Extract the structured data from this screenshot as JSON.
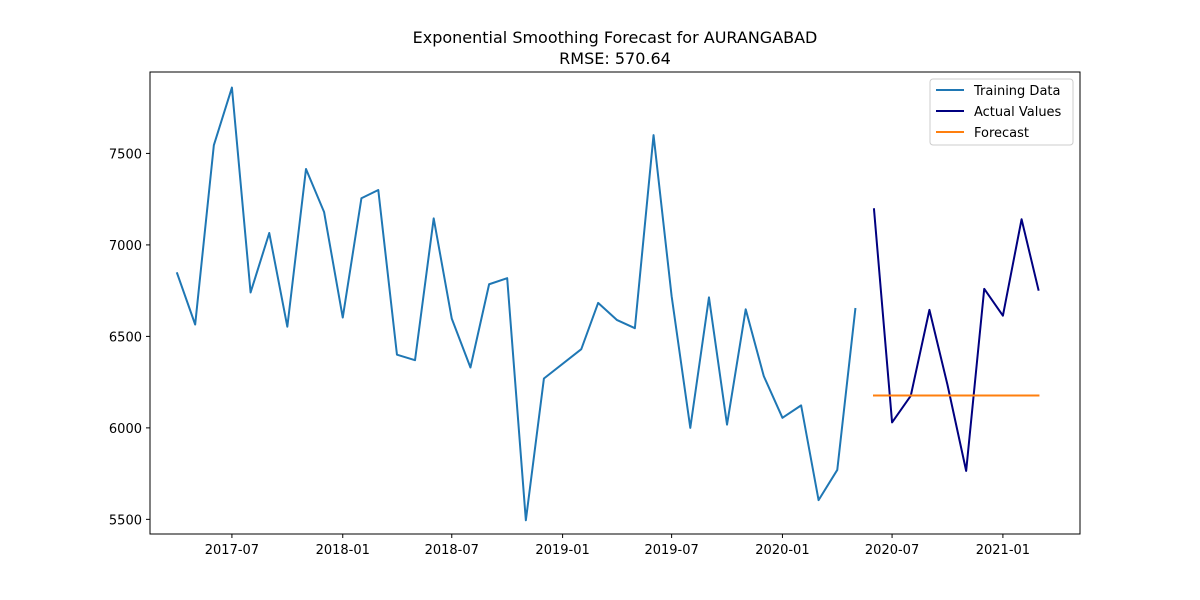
{
  "chart_data": {
    "type": "line",
    "title": "Exponential Smoothing Forecast for AURANGABAD",
    "subtitle": "RMSE: 570.64",
    "xlabel": "",
    "ylabel": "",
    "x_range": [
      "2017-02-15",
      "2021-05-09"
    ],
    "ylim": [
      5420,
      7945
    ],
    "y_ticks": [
      5500,
      6000,
      6500,
      7000,
      7500
    ],
    "x_ticks": [
      "2017-07",
      "2018-01",
      "2018-07",
      "2019-01",
      "2019-07",
      "2020-01",
      "2020-07",
      "2021-01"
    ],
    "grid": false,
    "legend_position": "top-right",
    "series": [
      {
        "name": "Training Data",
        "color": "#1f77b4",
        "points": [
          [
            "2017-04-01",
            6845
          ],
          [
            "2017-05-01",
            6565
          ],
          [
            "2017-06-01",
            7545
          ],
          [
            "2017-07-01",
            7860
          ],
          [
            "2017-08-01",
            6740
          ],
          [
            "2017-09-01",
            7065
          ],
          [
            "2017-10-01",
            6553
          ],
          [
            "2017-11-01",
            7415
          ],
          [
            "2017-12-01",
            7180
          ],
          [
            "2018-01-01",
            6603
          ],
          [
            "2018-02-01",
            7255
          ],
          [
            "2018-03-01",
            7300
          ],
          [
            "2018-04-01",
            6400
          ],
          [
            "2018-05-01",
            6370
          ],
          [
            "2018-06-01",
            7145
          ],
          [
            "2018-07-01",
            6597
          ],
          [
            "2018-08-01",
            6330
          ],
          [
            "2018-09-01",
            6785
          ],
          [
            "2018-10-01",
            6818
          ],
          [
            "2018-11-01",
            5495
          ],
          [
            "2018-12-01",
            6270
          ],
          [
            "2019-02-01",
            6430
          ],
          [
            "2019-03-01",
            6683
          ],
          [
            "2019-04-01",
            6590
          ],
          [
            "2019-05-01",
            6545
          ],
          [
            "2019-06-01",
            7600
          ],
          [
            "2019-07-01",
            6720
          ],
          [
            "2019-08-01",
            6000
          ],
          [
            "2019-09-01",
            6713
          ],
          [
            "2019-10-01",
            6018
          ],
          [
            "2019-11-01",
            6648
          ],
          [
            "2019-12-01",
            6283
          ],
          [
            "2020-01-01",
            6055
          ],
          [
            "2020-02-01",
            6123
          ],
          [
            "2020-03-01",
            5605
          ],
          [
            "2020-04-01",
            5770
          ],
          [
            "2020-05-01",
            6650
          ]
        ]
      },
      {
        "name": "Actual Values",
        "color": "#000080",
        "points": [
          [
            "2020-06-01",
            7195
          ],
          [
            "2020-07-01",
            6030
          ],
          [
            "2020-08-01",
            6175
          ],
          [
            "2020-09-01",
            6645
          ],
          [
            "2020-10-01",
            6235
          ],
          [
            "2020-11-01",
            5765
          ],
          [
            "2020-12-01",
            6760
          ],
          [
            "2021-01-01",
            6613
          ],
          [
            "2021-02-01",
            7140
          ],
          [
            "2021-03-01",
            6755
          ]
        ]
      },
      {
        "name": "Forecast",
        "color": "#ff7f0e",
        "points": [
          [
            "2020-06-01",
            6177
          ],
          [
            "2020-07-01",
            6177
          ],
          [
            "2020-08-01",
            6177
          ],
          [
            "2020-09-01",
            6177
          ],
          [
            "2020-10-01",
            6177
          ],
          [
            "2020-11-01",
            6177
          ],
          [
            "2020-12-01",
            6177
          ],
          [
            "2021-01-01",
            6177
          ],
          [
            "2021-02-01",
            6177
          ],
          [
            "2021-03-01",
            6177
          ]
        ]
      }
    ]
  }
}
